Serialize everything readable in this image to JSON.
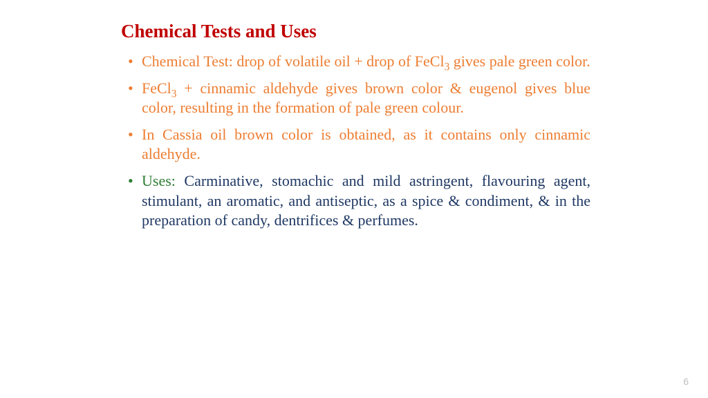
{
  "colors": {
    "title": "#c00000",
    "orange": "#ed7d31",
    "green": "#2e7d32",
    "navy": "#1f3864",
    "pagenum": "#bfbfbf",
    "background": "#ffffff"
  },
  "typography": {
    "title_fontsize": 27,
    "body_fontsize": 22,
    "font_family": "Times New Roman"
  },
  "title": "Chemical Tests and Uses",
  "bullets": [
    {
      "bullet_color": "#ed7d31",
      "segments": [
        {
          "text": "Chemical Test: drop of volatile oil + drop of FeCl",
          "color": "#ed7d31"
        },
        {
          "text": "3",
          "color": "#ed7d31",
          "sub": true
        },
        {
          "text": " gives pale green color.",
          "color": "#ed7d31"
        }
      ]
    },
    {
      "bullet_color": "#ed7d31",
      "segments": [
        {
          "text": "FeCl",
          "color": "#ed7d31"
        },
        {
          "text": "3",
          "color": "#ed7d31",
          "sub": true
        },
        {
          "text": " + cinnamic aldehyde gives brown color & eugenol gives blue color, resulting in the formation of pale green colour.",
          "color": "#ed7d31"
        }
      ]
    },
    {
      "bullet_color": "#ed7d31",
      "segments": [
        {
          "text": "In Cassia oil brown color is obtained, as it contains only cinnamic aldehyde.",
          "color": "#ed7d31"
        }
      ]
    },
    {
      "bullet_color": "#2e7d32",
      "segments": [
        {
          "text": "Uses:",
          "color": "#2e7d32"
        },
        {
          "text": " Carminative, stomachic and mild astringent, flavouring  agent, stimulant, an aromatic, and antiseptic, as a spice & condiment,  & in the preparation of candy, dentrifices & perfumes.",
          "color": "#1f3864"
        }
      ]
    }
  ],
  "page_number": "6"
}
